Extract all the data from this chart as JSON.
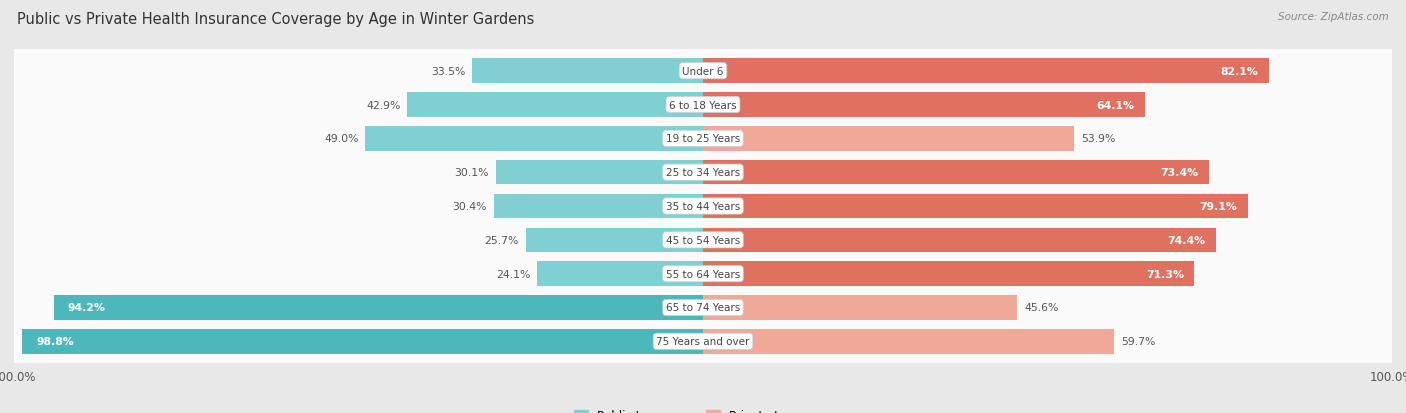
{
  "title": "Public vs Private Health Insurance Coverage by Age in Winter Gardens",
  "source": "Source: ZipAtlas.com",
  "categories": [
    "Under 6",
    "6 to 18 Years",
    "19 to 25 Years",
    "25 to 34 Years",
    "35 to 44 Years",
    "45 to 54 Years",
    "55 to 64 Years",
    "65 to 74 Years",
    "75 Years and over"
  ],
  "public_values": [
    33.5,
    42.9,
    49.0,
    30.1,
    30.4,
    25.7,
    24.1,
    94.2,
    98.8
  ],
  "private_values": [
    82.1,
    64.1,
    53.9,
    73.4,
    79.1,
    74.4,
    71.3,
    45.6,
    59.7
  ],
  "public_color_dark": "#4db8bc",
  "public_color_light": "#7ed0d2",
  "private_color_dark": "#e07060",
  "private_color_light": "#f0a898",
  "row_bg_color": "#f0f0f0",
  "row_inner_color": "#fafafa",
  "bg_color": "#e8e8e8",
  "max_val": 100.0,
  "legend_public": "Public Insurance",
  "legend_private": "Private Insurance",
  "pub_dark_threshold": 80.0,
  "priv_dark_threshold": 60.0
}
